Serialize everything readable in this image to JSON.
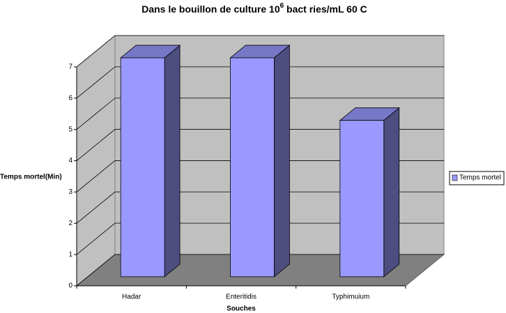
{
  "chart_data": {
    "type": "bar3d",
    "title": [
      "Dans le bouillon de culture 10",
      "6",
      " bact  ries/mL 60  C"
    ],
    "x_label": "Souches",
    "y_label": "Temps mortel(Min)",
    "categories": [
      "Hadar",
      "Enteritidis",
      "Typhimuium"
    ],
    "series": [
      {
        "name": "Temps mortel",
        "color": "#9999ff",
        "values": [
          7,
          7,
          5
        ]
      }
    ],
    "ylim": [
      0,
      7
    ],
    "yticks": [
      0,
      1,
      2,
      3,
      4,
      5,
      6,
      7
    ],
    "grid": true,
    "legend": "right"
  }
}
